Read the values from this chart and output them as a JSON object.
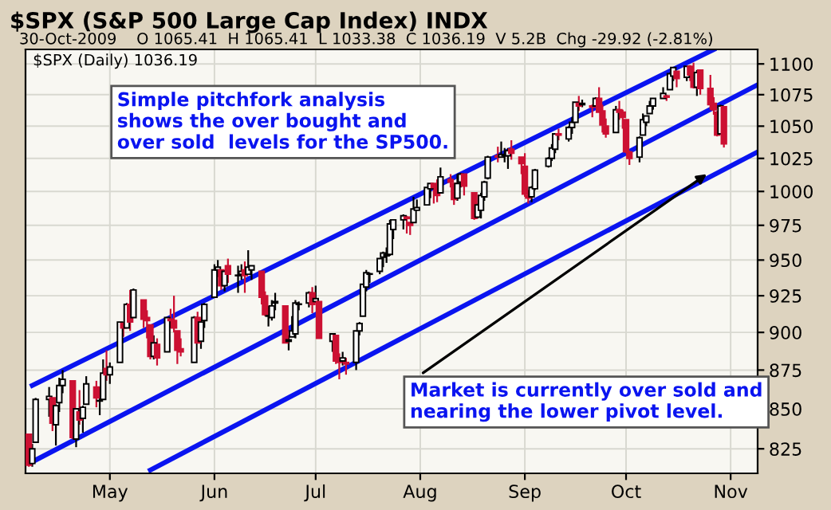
{
  "chart_data": {
    "type": "candlestick",
    "title": "$SPX (S&P 500 Large Cap Index) INDX",
    "subtitle": "30-Oct-2009    O 1065.41  H 1065.41  L 1033.38  C 1036.19  V 5.2B  Chg -29.92 (-2.81%)",
    "x": [
      "2009-04-07",
      "2009-04-08",
      "2009-04-09",
      "2009-04-13",
      "2009-04-14",
      "2009-04-15",
      "2009-04-16",
      "2009-04-17",
      "2009-04-20",
      "2009-04-21",
      "2009-04-22",
      "2009-04-23",
      "2009-04-24",
      "2009-04-27",
      "2009-04-28",
      "2009-04-29",
      "2009-04-30",
      "2009-05-01",
      "2009-05-04",
      "2009-05-05",
      "2009-05-06",
      "2009-05-07",
      "2009-05-08",
      "2009-05-11",
      "2009-05-12",
      "2009-05-13",
      "2009-05-14",
      "2009-05-15",
      "2009-05-18",
      "2009-05-19",
      "2009-05-20",
      "2009-05-21",
      "2009-05-22",
      "2009-05-26",
      "2009-05-27",
      "2009-05-28",
      "2009-05-29",
      "2009-06-01",
      "2009-06-02",
      "2009-06-03",
      "2009-06-04",
      "2009-06-05",
      "2009-06-08",
      "2009-06-09",
      "2009-06-10",
      "2009-06-11",
      "2009-06-12",
      "2009-06-15",
      "2009-06-16",
      "2009-06-17",
      "2009-06-18",
      "2009-06-19",
      "2009-06-22",
      "2009-06-23",
      "2009-06-24",
      "2009-06-25",
      "2009-06-26",
      "2009-06-29",
      "2009-06-30",
      "2009-07-01",
      "2009-07-02",
      "2009-07-06",
      "2009-07-07",
      "2009-07-08",
      "2009-07-09",
      "2009-07-10",
      "2009-07-13",
      "2009-07-14",
      "2009-07-15",
      "2009-07-16",
      "2009-07-17",
      "2009-07-20",
      "2009-07-21",
      "2009-07-22",
      "2009-07-23",
      "2009-07-24",
      "2009-07-27",
      "2009-07-28",
      "2009-07-29",
      "2009-07-30",
      "2009-07-31",
      "2009-08-03",
      "2009-08-04",
      "2009-08-05",
      "2009-08-06",
      "2009-08-07",
      "2009-08-10",
      "2009-08-11",
      "2009-08-12",
      "2009-08-13",
      "2009-08-14",
      "2009-08-17",
      "2009-08-18",
      "2009-08-19",
      "2009-08-20",
      "2009-08-21",
      "2009-08-24",
      "2009-08-25",
      "2009-08-26",
      "2009-08-27",
      "2009-08-28",
      "2009-08-31",
      "2009-09-01",
      "2009-09-02",
      "2009-09-03",
      "2009-09-04",
      "2009-09-08",
      "2009-09-09",
      "2009-09-10",
      "2009-09-11",
      "2009-09-14",
      "2009-09-15",
      "2009-09-16",
      "2009-09-17",
      "2009-09-18",
      "2009-09-21",
      "2009-09-22",
      "2009-09-23",
      "2009-09-24",
      "2009-09-25",
      "2009-09-28",
      "2009-09-29",
      "2009-09-30",
      "2009-10-01",
      "2009-10-02",
      "2009-10-05",
      "2009-10-06",
      "2009-10-07",
      "2009-10-08",
      "2009-10-09",
      "2009-10-12",
      "2009-10-13",
      "2009-10-14",
      "2009-10-15",
      "2009-10-16",
      "2009-10-19",
      "2009-10-20",
      "2009-10-21",
      "2009-10-22",
      "2009-10-23",
      "2009-10-26",
      "2009-10-27",
      "2009-10-28",
      "2009-10-29",
      "2009-10-30"
    ],
    "ohlc": [
      [
        834,
        834,
        814,
        815
      ],
      [
        816,
        828,
        814,
        825
      ],
      [
        829,
        857,
        829,
        856
      ],
      [
        856,
        864,
        845,
        858
      ],
      [
        857,
        857,
        836,
        841
      ],
      [
        840,
        853,
        827,
        852
      ],
      [
        854,
        870,
        848,
        865
      ],
      [
        865,
        875,
        860,
        869
      ],
      [
        868,
        868,
        831,
        832
      ],
      [
        831,
        850,
        826,
        850
      ],
      [
        848,
        862,
        840,
        843
      ],
      [
        844,
        852,
        835,
        851
      ],
      [
        853,
        871,
        853,
        866
      ],
      [
        864,
        868,
        851,
        857
      ],
      [
        855,
        864,
        846,
        855
      ],
      [
        856,
        882,
        856,
        873
      ],
      [
        876,
        888,
        868,
        872
      ],
      [
        872,
        880,
        866,
        877
      ],
      [
        880,
        907,
        880,
        907
      ],
      [
        906,
        907,
        897,
        903
      ],
      [
        903,
        920,
        903,
        919
      ],
      [
        919,
        929,
        901,
        907
      ],
      [
        910,
        930,
        910,
        929
      ],
      [
        922,
        922,
        903,
        909
      ],
      [
        910,
        915,
        896,
        908
      ],
      [
        905,
        905,
        882,
        884
      ],
      [
        884,
        898,
        882,
        893
      ],
      [
        892,
        896,
        878,
        883
      ],
      [
        887,
        910,
        887,
        910
      ],
      [
        909,
        916,
        903,
        908
      ],
      [
        908,
        925,
        900,
        903
      ],
      [
        901,
        901,
        879,
        888
      ],
      [
        889,
        896,
        884,
        887
      ],
      [
        880,
        911,
        880,
        910
      ],
      [
        910,
        914,
        893,
        893
      ],
      [
        894,
        909,
        889,
        907
      ],
      [
        908,
        920,
        903,
        919
      ],
      [
        924,
        947,
        924,
        943
      ],
      [
        943,
        950,
        938,
        945
      ],
      [
        943,
        943,
        929,
        932
      ],
      [
        932,
        943,
        928,
        942
      ],
      [
        946,
        951,
        934,
        940
      ],
      [
        939,
        946,
        927,
        939
      ],
      [
        940,
        947,
        936,
        942
      ],
      [
        943,
        949,
        927,
        939
      ],
      [
        940,
        957,
        940,
        945
      ],
      [
        943,
        946,
        936,
        946
      ],
      [
        942,
        942,
        919,
        924
      ],
      [
        925,
        928,
        911,
        912
      ],
      [
        911,
        918,
        904,
        911
      ],
      [
        910,
        922,
        908,
        918
      ],
      [
        920,
        927,
        915,
        921
      ],
      [
        918,
        918,
        893,
        893
      ],
      [
        894,
        898,
        888,
        895
      ],
      [
        897,
        911,
        897,
        901
      ],
      [
        899,
        922,
        896,
        920
      ],
      [
        919,
        921,
        915,
        919
      ],
      [
        920,
        928,
        917,
        927
      ],
      [
        927,
        931,
        913,
        919
      ],
      [
        921,
        932,
        920,
        923
      ],
      [
        921,
        921,
        896,
        896
      ],
      [
        894,
        899,
        887,
        899
      ],
      [
        898,
        898,
        879,
        881
      ],
      [
        882,
        886,
        869,
        880
      ],
      [
        881,
        887,
        878,
        883
      ],
      [
        880,
        883,
        872,
        879
      ],
      [
        880,
        901,
        875,
        901
      ],
      [
        901,
        907,
        898,
        906
      ],
      [
        911,
        933,
        911,
        933
      ],
      [
        931,
        943,
        928,
        941
      ],
      [
        940,
        941,
        934,
        940
      ],
      [
        942,
        951,
        940,
        951
      ],
      [
        952,
        956,
        945,
        955
      ],
      [
        953,
        959,
        948,
        954
      ],
      [
        954,
        979,
        953,
        976
      ],
      [
        972,
        979,
        965,
        979
      ],
      [
        979,
        983,
        972,
        982
      ],
      [
        981,
        982,
        969,
        980
      ],
      [
        977,
        977,
        968,
        975
      ],
      [
        977,
        996,
        977,
        987
      ],
      [
        986,
        994,
        986,
        988
      ],
      [
        990,
        1003,
        990,
        1003
      ],
      [
        1002,
        1006,
        995,
        1006
      ],
      [
        1006,
        1006,
        991,
        1003
      ],
      [
        1004,
        1009,
        992,
        997
      ],
      [
        999,
        1018,
        999,
        1011
      ],
      [
        1009,
        1013,
        1003,
        1007
      ],
      [
        1006,
        1006,
        990,
        994
      ],
      [
        995,
        1013,
        993,
        1006
      ],
      [
        1007,
        1014,
        1003,
        1013
      ],
      [
        1013,
        1013,
        997,
        1004
      ],
      [
        999,
        999,
        979,
        980
      ],
      [
        981,
        991,
        980,
        990
      ],
      [
        986,
        999,
        980,
        997
      ],
      [
        996,
        1008,
        993,
        1007
      ],
      [
        1010,
        1027,
        1009,
        1026
      ],
      [
        1027,
        1034,
        1022,
        1026
      ],
      [
        1026,
        1038,
        1026,
        1028
      ],
      [
        1027,
        1033,
        1022,
        1028
      ],
      [
        1027,
        1033,
        1017,
        1031
      ],
      [
        1032,
        1039,
        1024,
        1029
      ],
      [
        1026,
        1026,
        1013,
        1021
      ],
      [
        1019,
        1029,
        996,
        998
      ],
      [
        997,
        1001,
        991,
        995
      ],
      [
        996,
        1004,
        992,
        1003
      ],
      [
        1002,
        1017,
        1001,
        1016
      ],
      [
        1019,
        1026,
        1018,
        1025
      ],
      [
        1025,
        1036,
        1023,
        1033
      ],
      [
        1032,
        1044,
        1029,
        1044
      ],
      [
        1044,
        1048,
        1039,
        1043
      ],
      [
        1040,
        1050,
        1038,
        1049
      ],
      [
        1049,
        1057,
        1044,
        1053
      ],
      [
        1053,
        1069,
        1053,
        1069
      ],
      [
        1068,
        1074,
        1062,
        1066
      ],
      [
        1067,
        1071,
        1065,
        1068
      ],
      [
        1066,
        1067,
        1057,
        1065
      ],
      [
        1066,
        1073,
        1066,
        1072
      ],
      [
        1072,
        1081,
        1061,
        1061
      ],
      [
        1062,
        1067,
        1045,
        1051
      ],
      [
        1050,
        1056,
        1041,
        1044
      ],
      [
        1045,
        1066,
        1045,
        1063
      ],
      [
        1063,
        1070,
        1055,
        1061
      ],
      [
        1061,
        1063,
        1048,
        1057
      ],
      [
        1055,
        1055,
        1029,
        1030
      ],
      [
        1030,
        1031,
        1020,
        1025
      ],
      [
        1026,
        1042,
        1022,
        1041
      ],
      [
        1043,
        1060,
        1043,
        1055
      ],
      [
        1053,
        1058,
        1050,
        1058
      ],
      [
        1060,
        1070,
        1060,
        1066
      ],
      [
        1066,
        1072,
        1063,
        1072
      ],
      [
        1072,
        1081,
        1072,
        1076
      ],
      [
        1074,
        1075,
        1070,
        1073
      ],
      [
        1079,
        1093,
        1079,
        1092
      ],
      [
        1090,
        1097,
        1086,
        1097
      ],
      [
        1094,
        1094,
        1081,
        1088
      ],
      [
        1089,
        1098,
        1086,
        1098
      ],
      [
        1098,
        1099,
        1086,
        1091
      ],
      [
        1091,
        1101,
        1080,
        1081
      ],
      [
        1081,
        1095,
        1074,
        1093
      ],
      [
        1095,
        1095,
        1075,
        1080
      ],
      [
        1080,
        1091,
        1063,
        1067
      ],
      [
        1068,
        1073,
        1059,
        1063
      ],
      [
        1061,
        1062,
        1042,
        1043
      ],
      [
        1044,
        1067,
        1044,
        1066
      ],
      [
        1065.41,
        1065.41,
        1033.38,
        1036.19
      ]
    ],
    "series": [
      {
        "type": "line",
        "color": "#0a14f0",
        "x": [
          "2009-04-08",
          "2009-10-27"
        ],
        "values": [
          865,
          1112
        ]
      },
      {
        "type": "line",
        "color": "#0a14f0",
        "x": [
          "2009-04-08",
          "2009-11-09"
        ],
        "values": [
          817,
          1083
        ]
      },
      {
        "type": "line",
        "color": "#0a14f0",
        "x": [
          "2009-05-13",
          "2009-11-09"
        ],
        "values": [
          812,
          1030
        ]
      }
    ],
    "annotations": [
      "$SPX (Daily) 1036.19",
      "Simple pitchfork analysis\nshows the over bought and\nover sold  levels for the SP500.",
      {
        "text": "Market is currently over sold and\nnearing the lower pivot level.",
        "x": "2009-10-26",
        "y": 1015
      }
    ],
    "xlim": [
      "2009-04-06",
      "2009-11-09"
    ],
    "xticks": [
      {
        "value": "2009-05-01",
        "label": "May"
      },
      {
        "value": "2009-06-01",
        "label": "Jun"
      },
      {
        "value": "2009-07-01",
        "label": "Jul"
      },
      {
        "value": "2009-08-01",
        "label": "Aug"
      },
      {
        "value": "2009-09-01",
        "label": "Sep"
      },
      {
        "value": "2009-10-01",
        "label": "Oct"
      },
      {
        "value": "2009-11-01",
        "label": "Nov"
      }
    ],
    "ylim": [
      810,
      1112
    ],
    "yticks": [
      825,
      850,
      875,
      900,
      925,
      950,
      975,
      1000,
      1025,
      1050,
      1075,
      1100
    ],
    "log": "y",
    "grid": true
  }
}
